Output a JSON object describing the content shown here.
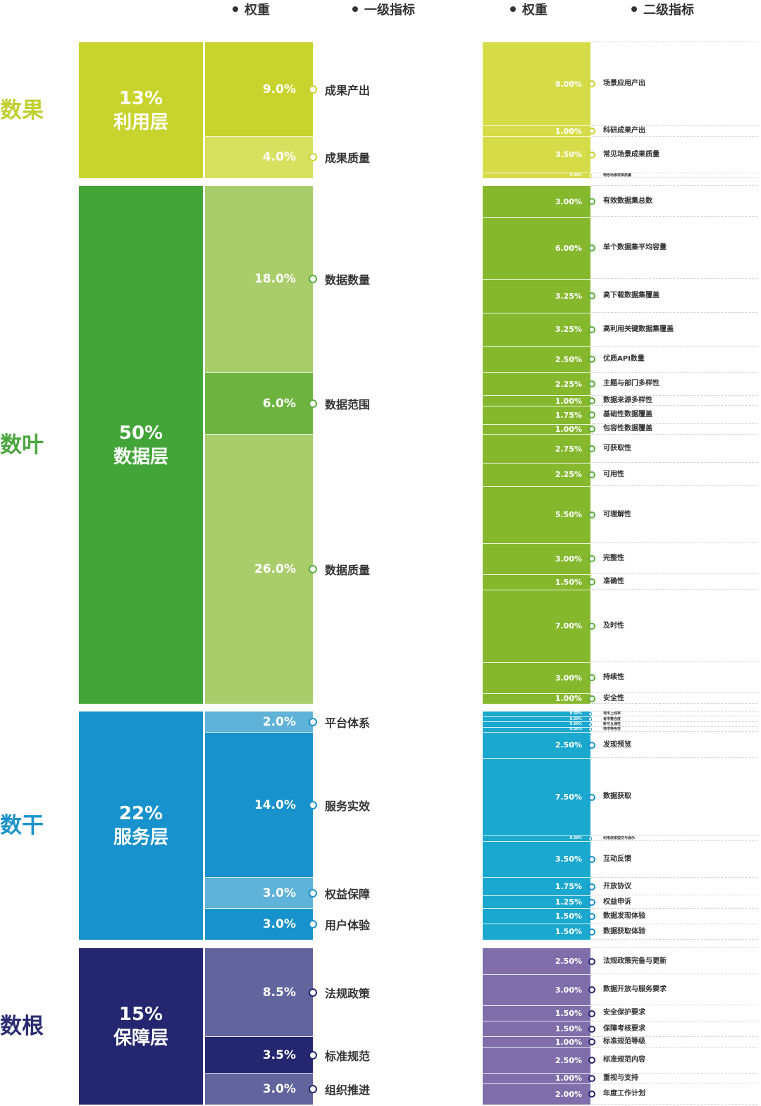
{
  "headers": [
    "权重",
    "一级指标",
    "权重",
    "二级指标"
  ],
  "colors": {
    "outcome": {
      "side": "#bfd030",
      "layer": "#c8d42d",
      "l1": [
        "#c8d42d",
        "#d8e060"
      ],
      "l2": "#d6dc48",
      "dot": "#c8d42d"
    },
    "data": {
      "side": "#4aa63e",
      "layer": "#43a538",
      "l1": [
        "#a8cd6a",
        "#6db33f",
        "#a8cd6a"
      ],
      "l2": "#86b82e",
      "dot": "#5aae3a"
    },
    "service": {
      "side": "#1a93cc",
      "layer": "#1892cc",
      "l1": [
        "#5fb2d8",
        "#1892cc",
        "#5fb2d8",
        "#1892cc"
      ],
      "l2": "#1aa8cf",
      "dot": "#1892cc"
    },
    "support": {
      "side": "#2b2c72",
      "layer": "#252670",
      "l1": [
        "#62649e",
        "#252670",
        "#62649e"
      ],
      "l2": "#7f6eaa",
      "dot": "#252670"
    }
  },
  "groups": [
    {
      "key": "outcome",
      "side": "数果",
      "layer_pct": "13%",
      "layer_name": "利用层",
      "level1": [
        {
          "weight": "9.0%",
          "name": "成果产出",
          "level2": [
            {
              "weight": "8.00%",
              "name": "场景应用产出"
            },
            {
              "weight": "1.00%",
              "name": "科研成果产出"
            }
          ]
        },
        {
          "weight": "4.0%",
          "name": "成果质量",
          "level2": [
            {
              "weight": "3.50%",
              "name": "常见场景成果质量"
            },
            {
              "weight": "0.50%",
              "name": "特色场景成果质量"
            }
          ]
        }
      ]
    },
    {
      "key": "data",
      "side": "数叶",
      "layer_pct": "50%",
      "layer_name": "数据层",
      "level1": [
        {
          "weight": "18.0%",
          "name": "数据数量",
          "level2": [
            {
              "weight": "3.00%",
              "name": "有效数据集总数"
            },
            {
              "weight": "6.00%",
              "name": "单个数据集平均容量"
            },
            {
              "weight": "3.25%",
              "name": "高下载数据集覆盖"
            },
            {
              "weight": "3.25%",
              "name": "高利用关键数据集覆盖"
            },
            {
              "weight": "2.50%",
              "name": "优质API数量"
            }
          ]
        },
        {
          "weight": "6.0%",
          "name": "数据范围",
          "level2": [
            {
              "weight": "2.25%",
              "name": "主题与部门多样性"
            },
            {
              "weight": "1.00%",
              "name": "数据来源多样性"
            },
            {
              "weight": "1.75%",
              "name": "基础性数据覆盖"
            },
            {
              "weight": "1.00%",
              "name": "包容性数据覆盖"
            }
          ]
        },
        {
          "weight": "26.0%",
          "name": "数据质量",
          "level2": [
            {
              "weight": "2.75%",
              "name": "可获取性"
            },
            {
              "weight": "2.25%",
              "name": "可用性"
            },
            {
              "weight": "5.50%",
              "name": "可理解性"
            },
            {
              "weight": "3.00%",
              "name": "完整性"
            },
            {
              "weight": "1.50%",
              "name": "准确性"
            },
            {
              "weight": "7.00%",
              "name": "及时性"
            },
            {
              "weight": "3.00%",
              "name": "持续性"
            },
            {
              "weight": "1.00%",
              "name": "安全性"
            }
          ]
        }
      ]
    },
    {
      "key": "service",
      "side": "数干",
      "layer_pct": "22%",
      "layer_name": "服务层",
      "level1": [
        {
          "weight": "2.0%",
          "name": "平台体系",
          "level2": [
            {
              "weight": "0.50%",
              "name": "地市上线率"
            },
            {
              "weight": "0.50%",
              "name": "省市整合度"
            },
            {
              "weight": "0.50%",
              "name": "账号互通性"
            },
            {
              "weight": "0.50%",
              "name": "地市特色性"
            }
          ]
        },
        {
          "weight": "14.0%",
          "name": "服务实效",
          "level2": [
            {
              "weight": "2.50%",
              "name": "发现预览"
            },
            {
              "weight": "7.50%",
              "name": "数据获取"
            },
            {
              "weight": "0.50%",
              "name": "利用成果提交与展示"
            },
            {
              "weight": "3.50%",
              "name": "互动反馈"
            }
          ]
        },
        {
          "weight": "3.0%",
          "name": "权益保障",
          "level2": [
            {
              "weight": "1.75%",
              "name": "开放协议"
            },
            {
              "weight": "1.25%",
              "name": "权益申诉"
            }
          ]
        },
        {
          "weight": "3.0%",
          "name": "用户体验",
          "level2": [
            {
              "weight": "1.50%",
              "name": "数据发现体验"
            },
            {
              "weight": "1.50%",
              "name": "数据获取体验"
            }
          ]
        }
      ]
    },
    {
      "key": "support",
      "side": "数根",
      "layer_pct": "15%",
      "layer_name": "保障层",
      "level1": [
        {
          "weight": "8.5%",
          "name": "法规政策",
          "level2": [
            {
              "weight": "2.50%",
              "name": "法规政策完备与更新"
            },
            {
              "weight": "3.00%",
              "name": "数据开放与服务要求"
            },
            {
              "weight": "1.50%",
              "name": "安全保护要求"
            },
            {
              "weight": "1.50%",
              "name": "保障考核要求"
            }
          ]
        },
        {
          "weight": "3.5%",
          "name": "标准规范",
          "level2": [
            {
              "weight": "1.00%",
              "name": "标准规范等级"
            },
            {
              "weight": "2.50%",
              "name": "标准规范内容"
            }
          ]
        },
        {
          "weight": "3.0%",
          "name": "组织推进",
          "level2": [
            {
              "weight": "1.00%",
              "name": "重视与支持"
            },
            {
              "weight": "2.00%",
              "name": "年度工作计划"
            }
          ]
        }
      ]
    }
  ]
}
